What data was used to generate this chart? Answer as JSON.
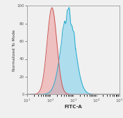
{
  "title": "",
  "xlabel": "FITC-A",
  "ylabel": "Normalized To Mode",
  "ylim": [
    0,
    100
  ],
  "yticks": [
    0,
    20,
    40,
    60,
    80,
    100
  ],
  "ytick_labels": [
    "0",
    "20",
    "40",
    "60",
    "80",
    "100"
  ],
  "xticks": [
    10.0,
    100.0,
    1000.0,
    10000.0,
    100000.0
  ],
  "red_peak_log": 2.08,
  "red_peak_height": 98,
  "red_sigma_log": 0.21,
  "blue_peak_log": 2.78,
  "blue_peak_height": 93,
  "blue_sigma_log": 0.3,
  "blue_fill_color": "#6DCCEE",
  "red_fill_color": "#EE9999",
  "blue_edge_color": "#22AACC",
  "red_edge_color": "#CC5555",
  "bg_color": "#F0F0F0",
  "spine_color": "#999999",
  "xlabel_fontsize": 5.0,
  "ylabel_fontsize": 4.2,
  "tick_labelsize": 4.0,
  "red_alpha": 0.55,
  "blue_alpha": 0.5
}
